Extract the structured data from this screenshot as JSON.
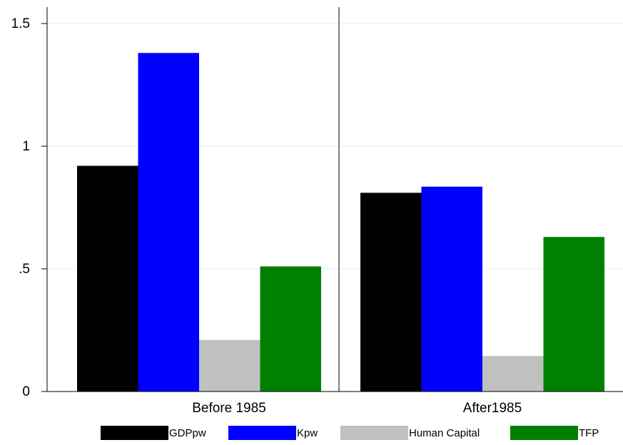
{
  "chart_data": {
    "type": "bar",
    "title": "",
    "xlabel": "",
    "ylabel": "",
    "categories": [
      "Before 1985",
      "After1985"
    ],
    "series": [
      {
        "name": "GDPpw",
        "values": [
          0.92,
          0.81
        ],
        "color": "#000000"
      },
      {
        "name": "Kpw",
        "values": [
          1.38,
          0.835
        ],
        "color": "#0000ff"
      },
      {
        "name": "Human Capital",
        "values": [
          0.21,
          0.145
        ],
        "color": "#c0c0c0"
      },
      {
        "name": "TFP",
        "values": [
          0.51,
          0.63
        ],
        "color": "#008000"
      }
    ],
    "ylim": [
      0,
      1.5
    ],
    "yticks": [
      {
        "value": 0,
        "label": "0"
      },
      {
        "value": 0.5,
        "label": ".5"
      },
      {
        "value": 1,
        "label": "1"
      },
      {
        "value": 1.5,
        "label": "1.5"
      }
    ],
    "grid": true,
    "legend_position": "bottom"
  }
}
